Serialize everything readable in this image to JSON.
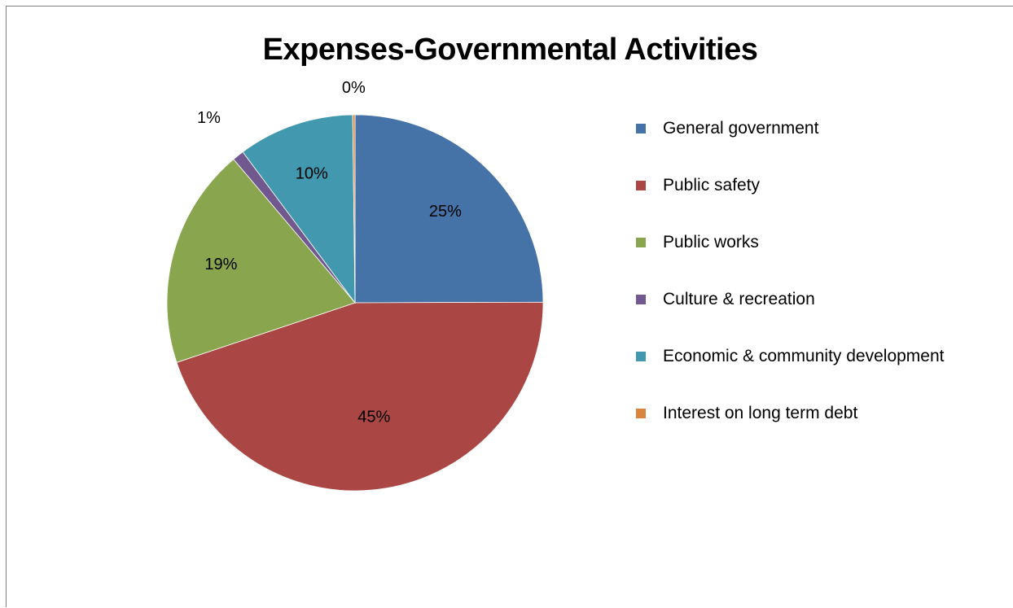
{
  "chart_data": {
    "type": "pie",
    "title": "Expenses-Governmental Activities",
    "categories": [
      "General government",
      "Public safety",
      "Public works",
      "Culture & recreation",
      "Economic & community development",
      "Interest on long term debt"
    ],
    "values": [
      25,
      45,
      19,
      1,
      10,
      0.2
    ],
    "data_labels": [
      "25%",
      "45%",
      "19%",
      "1%",
      "10%",
      "0%"
    ],
    "colors": [
      "#4572a7",
      "#aa4643",
      "#89a54e",
      "#71588f",
      "#4198af",
      "#db843d"
    ],
    "start_angle_deg": 0,
    "direction": "clockwise",
    "legend_position": "right"
  }
}
